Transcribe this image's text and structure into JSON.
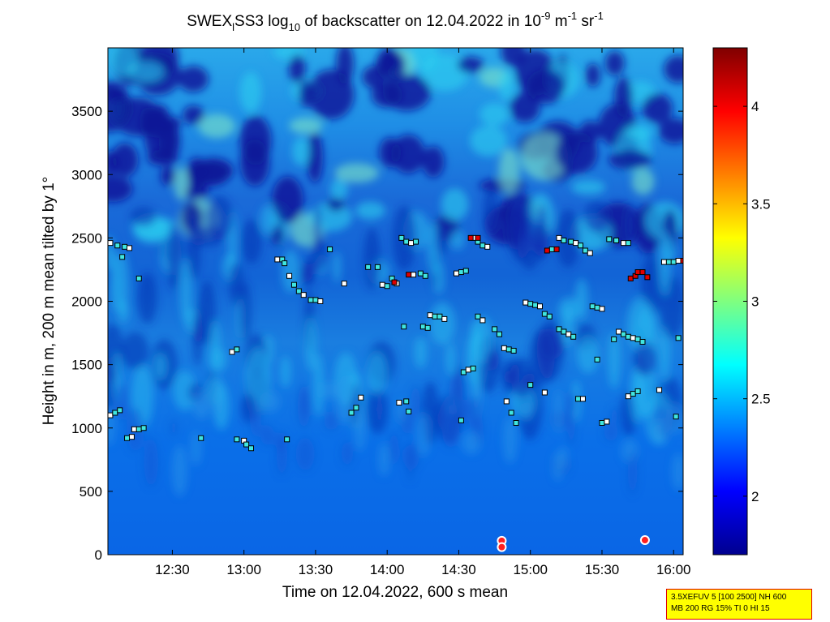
{
  "title": {
    "prefix": "SWEX",
    "sub1": "l",
    "mid": "SS3 log",
    "sub2": "10",
    "suffix": " of backscatter on 12.04.2022 in 10",
    "sup1": "-9",
    "unit1": " m",
    "sup2": "-1",
    "unit2": " sr",
    "sup3": "-1"
  },
  "info_box": {
    "line1": "3.5XEFUV 5 [100 2500] NH 600",
    "line2": "MB 200 RG 15% TI 0 HI 15"
  },
  "chart_data": {
    "type": "heatmap",
    "xlabel": "Time on 12.04.2022, 600 s mean",
    "ylabel": "Height in m, 200 m mean tilted by 1°",
    "x_range": [
      "12:03",
      "16:04"
    ],
    "x_ticks": [
      "12:30",
      "13:00",
      "13:30",
      "14:00",
      "14:30",
      "15:00",
      "15:30",
      "16:00"
    ],
    "y_range": [
      0,
      4000
    ],
    "y_ticks": [
      "0",
      "500",
      "1000",
      "1500",
      "2000",
      "2500",
      "3000",
      "3500"
    ],
    "colorbar": {
      "range": [
        1.7,
        4.3
      ],
      "ticks": [
        "2",
        "2.5",
        "3",
        "3.5",
        "4"
      ],
      "colormap": "jet"
    },
    "markers": [
      {
        "t": "12:04",
        "h": 2460
      },
      {
        "t": "12:07",
        "h": 2440
      },
      {
        "t": "12:10",
        "h": 2430
      },
      {
        "t": "12:12",
        "h": 2420
      },
      {
        "t": "12:09",
        "h": 2350
      },
      {
        "t": "12:16",
        "h": 2180
      },
      {
        "t": "12:04",
        "h": 1100
      },
      {
        "t": "12:06",
        "h": 1120
      },
      {
        "t": "12:08",
        "h": 1140
      },
      {
        "t": "12:14",
        "h": 990
      },
      {
        "t": "12:16",
        "h": 990
      },
      {
        "t": "12:18",
        "h": 1000
      },
      {
        "t": "12:13",
        "h": 930
      },
      {
        "t": "12:11",
        "h": 920
      },
      {
        "t": "12:42",
        "h": 920
      },
      {
        "t": "12:55",
        "h": 1600
      },
      {
        "t": "12:57",
        "h": 1620
      },
      {
        "t": "12:57",
        "h": 910
      },
      {
        "t": "13:00",
        "h": 900
      },
      {
        "t": "13:01",
        "h": 870
      },
      {
        "t": "13:03",
        "h": 840
      },
      {
        "t": "13:14",
        "h": 2330
      },
      {
        "t": "13:16",
        "h": 2330
      },
      {
        "t": "13:17",
        "h": 2300
      },
      {
        "t": "13:19",
        "h": 2200
      },
      {
        "t": "13:21",
        "h": 2130
      },
      {
        "t": "13:23",
        "h": 2080
      },
      {
        "t": "13:25",
        "h": 2050
      },
      {
        "t": "13:28",
        "h": 2010
      },
      {
        "t": "13:30",
        "h": 2010
      },
      {
        "t": "13:32",
        "h": 2000
      },
      {
        "t": "13:18",
        "h": 910
      },
      {
        "t": "13:36",
        "h": 2410
      },
      {
        "t": "13:42",
        "h": 2140
      },
      {
        "t": "13:45",
        "h": 1120
      },
      {
        "t": "13:47",
        "h": 1160
      },
      {
        "t": "13:49",
        "h": 1240
      },
      {
        "t": "13:52",
        "h": 2270
      },
      {
        "t": "13:56",
        "h": 2270
      },
      {
        "t": "13:58",
        "h": 2130
      },
      {
        "t": "14:00",
        "h": 2120
      },
      {
        "t": "14:02",
        "h": 2180
      },
      {
        "t": "14:04",
        "h": 2140
      },
      {
        "t": "14:06",
        "h": 2500
      },
      {
        "t": "14:08",
        "h": 2470
      },
      {
        "t": "14:10",
        "h": 2460
      },
      {
        "t": "14:12",
        "h": 2470
      },
      {
        "t": "14:07",
        "h": 1800
      },
      {
        "t": "14:05",
        "h": 1200
      },
      {
        "t": "14:08",
        "h": 1210
      },
      {
        "t": "14:09",
        "h": 1130
      },
      {
        "t": "14:11",
        "h": 2210
      },
      {
        "t": "14:14",
        "h": 2220
      },
      {
        "t": "14:16",
        "h": 2200
      },
      {
        "t": "14:18",
        "h": 1890
      },
      {
        "t": "14:20",
        "h": 1880
      },
      {
        "t": "14:22",
        "h": 1880
      },
      {
        "t": "14:24",
        "h": 1860
      },
      {
        "t": "14:15",
        "h": 1800
      },
      {
        "t": "14:17",
        "h": 1790
      },
      {
        "t": "14:29",
        "h": 2220
      },
      {
        "t": "14:31",
        "h": 2230
      },
      {
        "t": "14:33",
        "h": 2240
      },
      {
        "t": "14:36",
        "h": 2500
      },
      {
        "t": "14:38",
        "h": 2470
      },
      {
        "t": "14:40",
        "h": 2440
      },
      {
        "t": "14:42",
        "h": 2430
      },
      {
        "t": "14:31",
        "h": 1060
      },
      {
        "t": "14:32",
        "h": 1440
      },
      {
        "t": "14:34",
        "h": 1460
      },
      {
        "t": "14:36",
        "h": 1470
      },
      {
        "t": "14:38",
        "h": 1880
      },
      {
        "t": "14:40",
        "h": 1850
      },
      {
        "t": "14:45",
        "h": 1780
      },
      {
        "t": "14:47",
        "h": 1740
      },
      {
        "t": "14:49",
        "h": 1630
      },
      {
        "t": "14:51",
        "h": 1620
      },
      {
        "t": "14:53",
        "h": 1610
      },
      {
        "t": "14:50",
        "h": 1210
      },
      {
        "t": "14:52",
        "h": 1120
      },
      {
        "t": "14:54",
        "h": 1040
      },
      {
        "t": "14:58",
        "h": 1990
      },
      {
        "t": "15:00",
        "h": 1980
      },
      {
        "t": "15:02",
        "h": 1970
      },
      {
        "t": "15:04",
        "h": 1960
      },
      {
        "t": "15:06",
        "h": 1900
      },
      {
        "t": "15:08",
        "h": 1880
      },
      {
        "t": "15:06",
        "h": 1280
      },
      {
        "t": "15:00",
        "h": 1340
      },
      {
        "t": "15:09",
        "h": 2410
      },
      {
        "t": "15:12",
        "h": 2500
      },
      {
        "t": "15:14",
        "h": 2480
      },
      {
        "t": "15:17",
        "h": 2470
      },
      {
        "t": "15:19",
        "h": 2460
      },
      {
        "t": "15:21",
        "h": 2440
      },
      {
        "t": "15:23",
        "h": 2400
      },
      {
        "t": "15:25",
        "h": 2380
      },
      {
        "t": "15:12",
        "h": 1780
      },
      {
        "t": "15:14",
        "h": 1760
      },
      {
        "t": "15:16",
        "h": 1740
      },
      {
        "t": "15:18",
        "h": 1720
      },
      {
        "t": "15:20",
        "h": 1230
      },
      {
        "t": "15:22",
        "h": 1230
      },
      {
        "t": "15:26",
        "h": 1960
      },
      {
        "t": "15:28",
        "h": 1950
      },
      {
        "t": "15:30",
        "h": 1940
      },
      {
        "t": "15:28",
        "h": 1540
      },
      {
        "t": "15:30",
        "h": 1040
      },
      {
        "t": "15:32",
        "h": 1050
      },
      {
        "t": "15:33",
        "h": 2490
      },
      {
        "t": "15:36",
        "h": 2480
      },
      {
        "t": "15:39",
        "h": 2460
      },
      {
        "t": "15:41",
        "h": 2460
      },
      {
        "t": "15:35",
        "h": 1700
      },
      {
        "t": "15:37",
        "h": 1760
      },
      {
        "t": "15:39",
        "h": 1740
      },
      {
        "t": "15:41",
        "h": 1720
      },
      {
        "t": "15:43",
        "h": 1710
      },
      {
        "t": "15:45",
        "h": 1700
      },
      {
        "t": "15:47",
        "h": 1680
      },
      {
        "t": "15:41",
        "h": 1250
      },
      {
        "t": "15:43",
        "h": 1270
      },
      {
        "t": "15:45",
        "h": 1290
      },
      {
        "t": "15:56",
        "h": 2310
      },
      {
        "t": "15:58",
        "h": 2310
      },
      {
        "t": "16:00",
        "h": 2310
      },
      {
        "t": "16:02",
        "h": 2320
      },
      {
        "t": "16:02",
        "h": 1710
      },
      {
        "t": "16:01",
        "h": 1090
      },
      {
        "t": "15:54",
        "h": 1300
      }
    ],
    "hot_markers": [
      {
        "t": "14:03",
        "h": 2150
      },
      {
        "t": "14:09",
        "h": 2210
      },
      {
        "t": "14:35",
        "h": 2500
      },
      {
        "t": "14:38",
        "h": 2500
      },
      {
        "t": "15:07",
        "h": 2400
      },
      {
        "t": "15:11",
        "h": 2410
      },
      {
        "t": "15:42",
        "h": 2180
      },
      {
        "t": "15:44",
        "h": 2200
      },
      {
        "t": "15:45",
        "h": 2230
      },
      {
        "t": "15:47",
        "h": 2230
      },
      {
        "t": "15:49",
        "h": 2190
      },
      {
        "t": "16:04",
        "h": 2320
      }
    ],
    "ground_markers": [
      {
        "t": "14:48",
        "h": 110
      },
      {
        "t": "14:48",
        "h": 60
      },
      {
        "t": "15:48",
        "h": 115
      }
    ]
  }
}
